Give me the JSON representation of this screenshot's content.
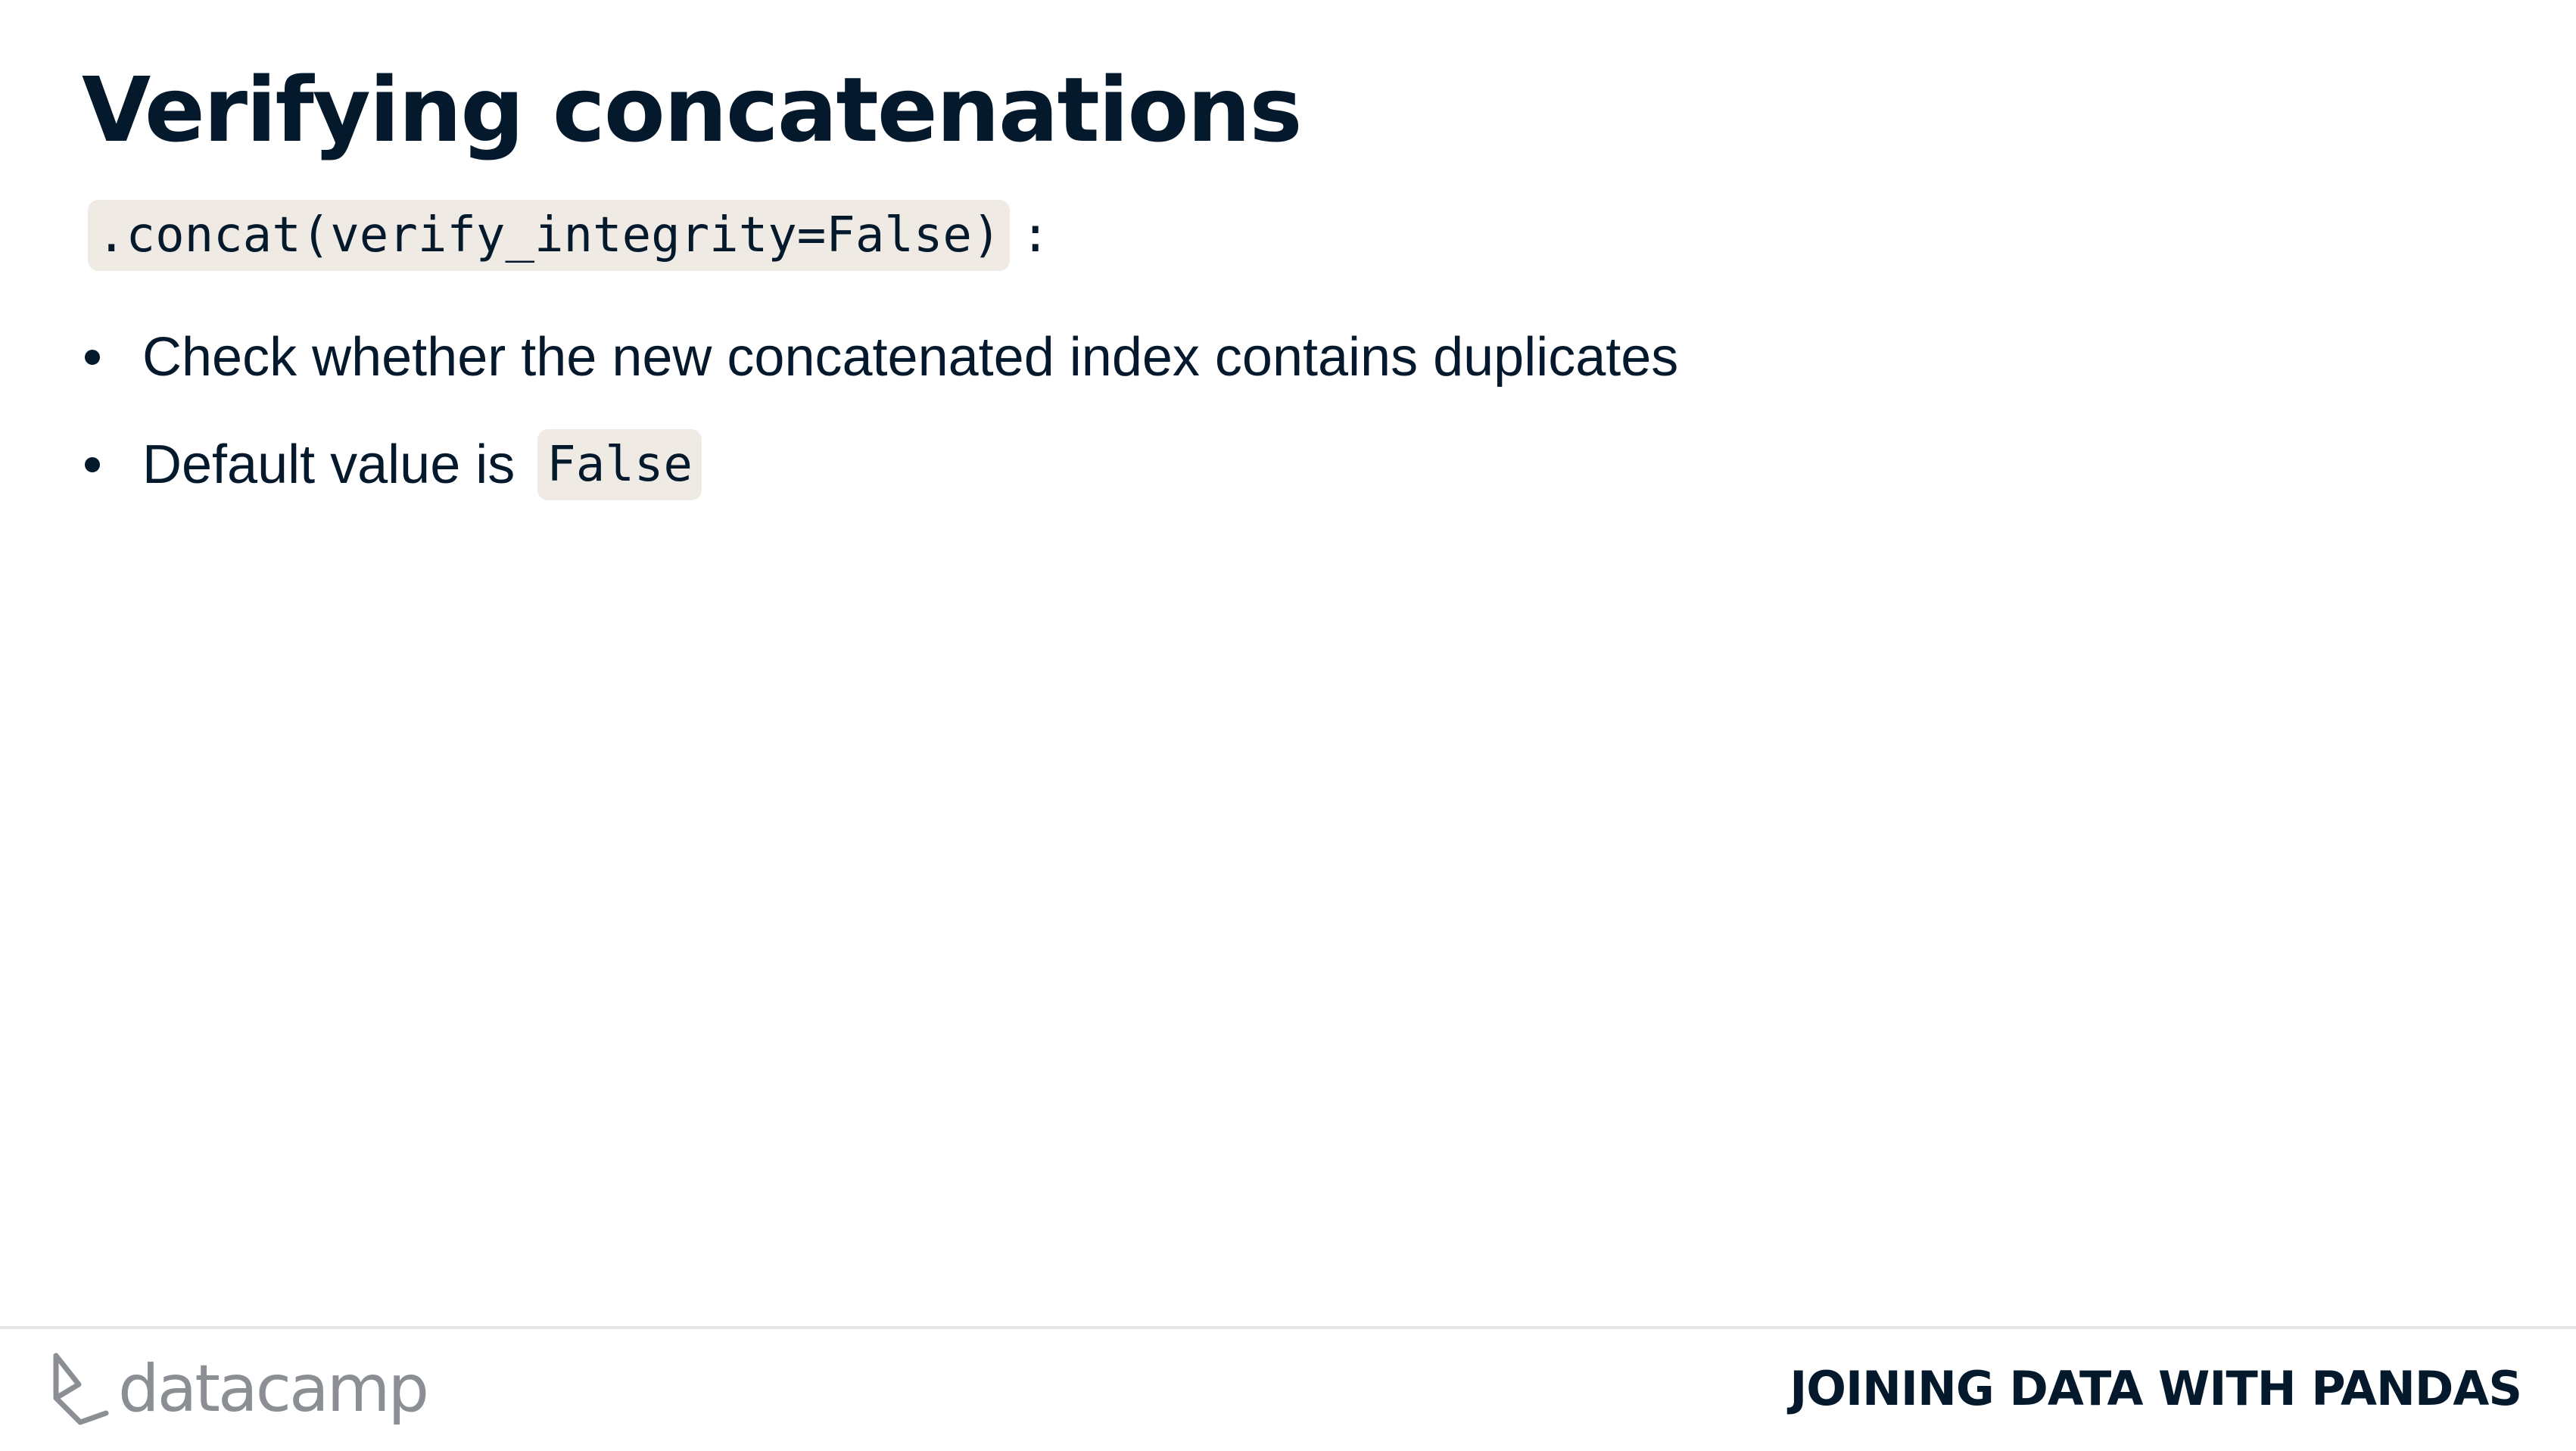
{
  "slide": {
    "title": "Verifying concatenations",
    "subtitle_code": ".concat(verify_integrity=False)",
    "subtitle_suffix": ":",
    "bullets": [
      {
        "text": "Check whether the new concatenated index contains duplicates"
      },
      {
        "text": "Default value is",
        "code": "False"
      }
    ]
  },
  "footer": {
    "logo_text": "datacamp",
    "logo_icon": "datacamp-logo-icon",
    "course_title": "JOINING DATA WITH PANDAS"
  },
  "colors": {
    "text": "#05192d",
    "code_background": "#efebe4",
    "logo_gray": "#8b8f94"
  }
}
